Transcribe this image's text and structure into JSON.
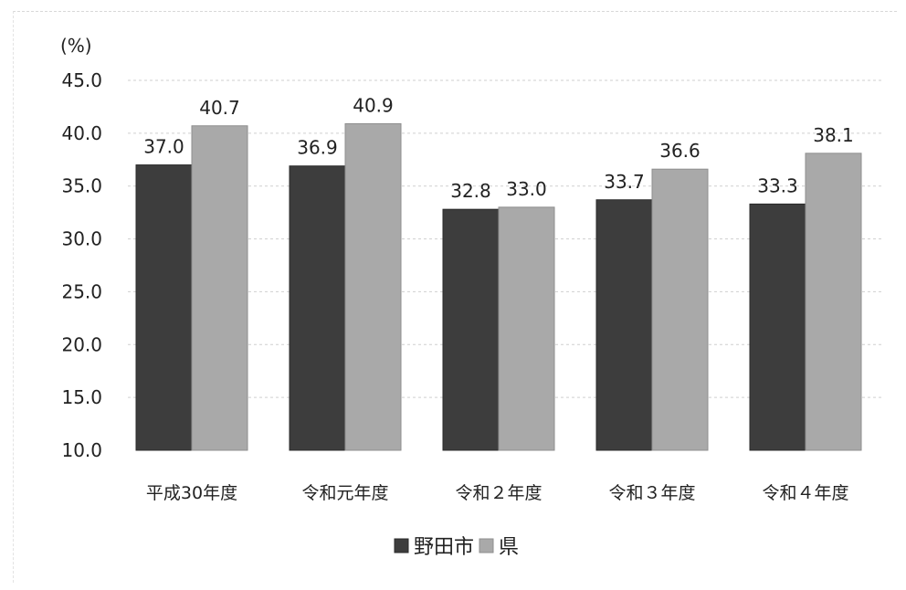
{
  "chart_data": {
    "type": "bar",
    "unit_label": "(%)",
    "categories": [
      "平成30年度",
      "令和元年度",
      "令和２年度",
      "令和３年度",
      "令和４年度"
    ],
    "series": [
      {
        "name": "野田市",
        "values": [
          37.0,
          36.9,
          32.8,
          33.7,
          33.3
        ],
        "color": "#3d3d3d"
      },
      {
        "name": "県",
        "values": [
          40.7,
          40.9,
          33.0,
          36.6,
          38.1
        ],
        "color": "#a9a9a9"
      }
    ],
    "data_labels": [
      [
        "37.0",
        "36.9",
        "32.8",
        "33.7",
        "33.3"
      ],
      [
        "40.7",
        "40.9",
        "33.0",
        "36.6",
        "38.1"
      ]
    ],
    "ylim": [
      10.0,
      45.0
    ],
    "yticks": [
      "10.0",
      "15.0",
      "20.0",
      "25.0",
      "30.0",
      "35.0",
      "40.0",
      "45.0"
    ],
    "ytick_values": [
      10,
      15,
      20,
      25,
      30,
      35,
      40,
      45
    ],
    "grid": true,
    "legend_position": "bottom"
  }
}
